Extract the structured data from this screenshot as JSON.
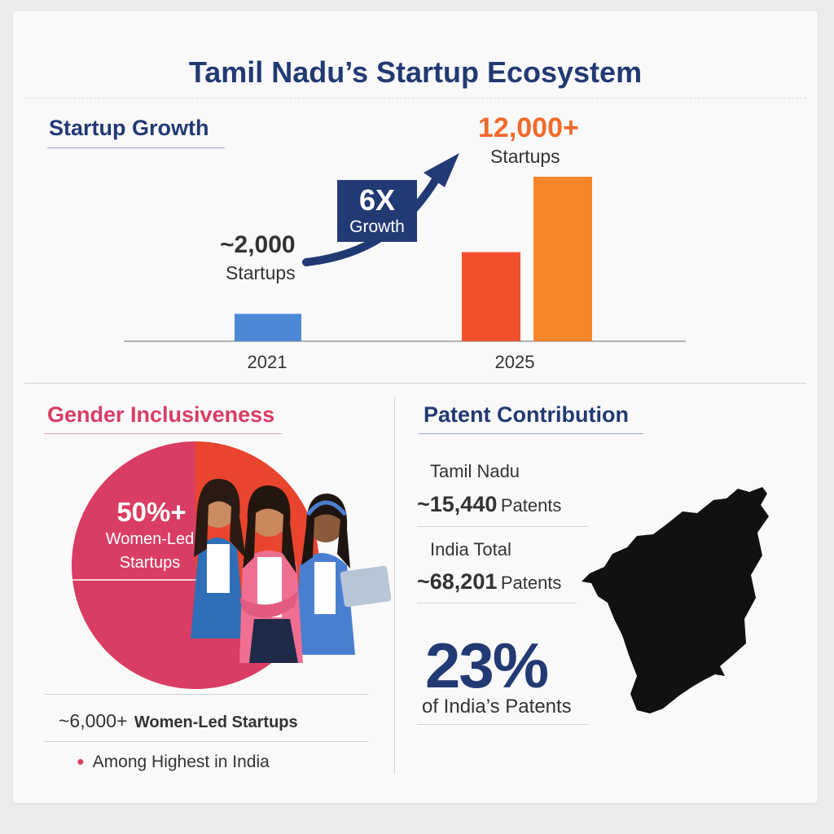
{
  "title": "Tamil Nadu’s Startup Ecosystem",
  "colors": {
    "navy": "#223a73",
    "blue_bar": "#4d88d6",
    "red_bar": "#f0502e",
    "orange_bar": "#f7862a",
    "pink": "#d93d63",
    "orange_accent": "#f26a2a"
  },
  "startup_growth": {
    "heading": "Startup Growth",
    "badge_value": "6X",
    "badge_label": "Growth",
    "callout_2021_value": "~2,000",
    "callout_2021_label": "Startups",
    "callout_2025_value": "12,000+",
    "callout_2025_label": "Startups",
    "icon": "trend-arrow-icon"
  },
  "gender": {
    "heading": "Gender Inclusiveness",
    "pie_value": "50%+",
    "pie_label_line1": "Women-Led",
    "pie_label_line2": "Startups",
    "stat_value": "~6,000+",
    "stat_label": "Women-Led Startups",
    "note": "Among Highest in India",
    "illustration": "women-founders-illustration"
  },
  "patents": {
    "heading": "Patent Contribution",
    "tn_label": "Tamil Nadu",
    "tn_value": "~15,440",
    "tn_unit": "Patents",
    "india_label": "India Total",
    "india_value": "~68,201",
    "india_unit": "Patents",
    "share_value": "23%",
    "share_label": "of India’s Patents",
    "map": "tamil-nadu-map"
  },
  "chart_data": [
    {
      "type": "bar",
      "categories": [
        "2021",
        "2025"
      ],
      "series": [
        {
          "values": [
            2000,
            6500
          ]
        },
        {
          "values": [
            null,
            12000
          ]
        }
      ],
      "colors": [
        "#4d88d6",
        "#f0502e",
        "#f7862a"
      ],
      "ylim": [
        0,
        12000
      ],
      "grid": false,
      "xlabel": "",
      "ylabel": ""
    },
    {
      "type": "pie",
      "labels": [
        "Women-Led Startups",
        ""
      ],
      "values": [
        50,
        50
      ],
      "colors": [
        "#d93d63",
        "#e8442e"
      ]
    }
  ]
}
